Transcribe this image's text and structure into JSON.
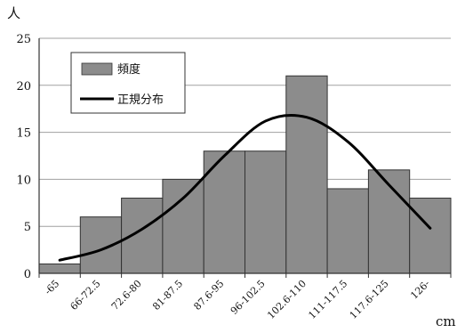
{
  "chart_data": {
    "type": "bar",
    "title": "",
    "ylabel": "人",
    "xlabel": "cm",
    "categories": [
      "-65",
      "66-72.5",
      "72.6-80",
      "81-87.5",
      "87.6-95",
      "96-102.5",
      "102.6-110",
      "111-117.5",
      "117.6-125",
      "126-"
    ],
    "series": [
      {
        "name": "頻度",
        "type": "bar",
        "values": [
          1,
          6,
          8,
          10,
          13,
          13,
          21,
          9,
          11,
          8
        ],
        "color": "#8c8c8c"
      },
      {
        "name": "正規分布",
        "type": "line",
        "values": [
          1.4,
          2.5,
          4.7,
          8.0,
          12.5,
          16.2,
          16.6,
          14.0,
          9.4,
          4.8
        ],
        "color": "#000000"
      }
    ],
    "ylim": [
      0,
      25
    ],
    "yticks": [
      0,
      5,
      10,
      15,
      20,
      25
    ],
    "grid": true,
    "legend_position": "top-left"
  }
}
